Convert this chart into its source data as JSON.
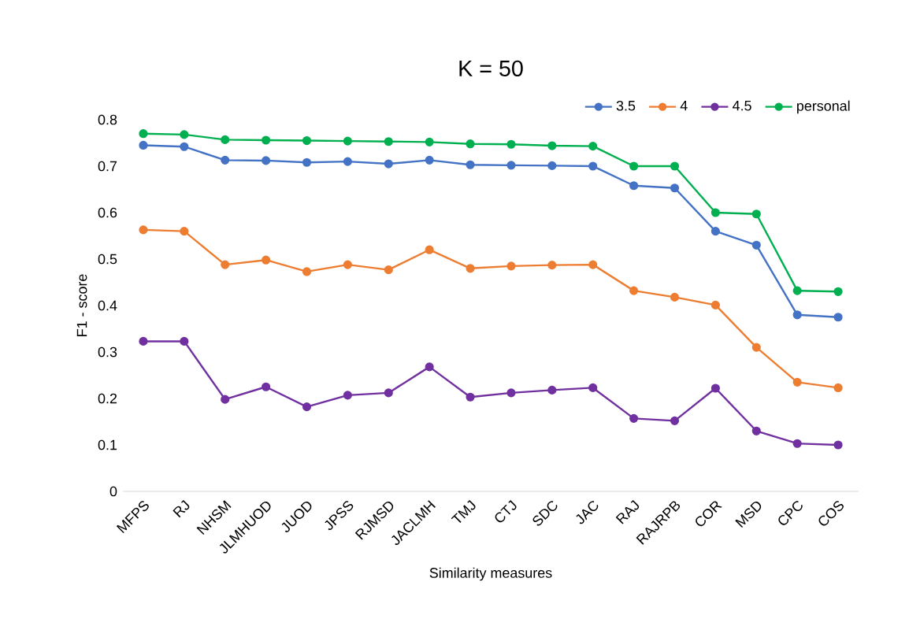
{
  "chart_data": {
    "type": "line",
    "title": "K = 50",
    "xlabel": "Similarity measures",
    "ylabel": "F1 - score",
    "categories": [
      "MFPS",
      "RJ",
      "NHSM",
      "JLMHUOD",
      "JUOD",
      "JPSS",
      "RJMSD",
      "JACLMH",
      "TMJ",
      "CTJ",
      "SDC",
      "JAC",
      "RAJ",
      "RAJRPB",
      "COR",
      "MSD",
      "CPC",
      "COS"
    ],
    "series": [
      {
        "name": "3.5",
        "color": "#4472c4",
        "values": [
          0.745,
          0.742,
          0.713,
          0.712,
          0.708,
          0.71,
          0.705,
          0.713,
          0.703,
          0.702,
          0.701,
          0.7,
          0.658,
          0.653,
          0.56,
          0.53,
          0.38,
          0.375
        ]
      },
      {
        "name": "4",
        "color": "#ed7d31",
        "values": [
          0.563,
          0.56,
          0.488,
          0.498,
          0.473,
          0.488,
          0.477,
          0.52,
          0.48,
          0.485,
          0.487,
          0.488,
          0.432,
          0.418,
          0.401,
          0.31,
          0.235,
          0.223
        ]
      },
      {
        "name": "4.5",
        "color": "#7030a0",
        "values": [
          0.323,
          0.323,
          0.198,
          0.225,
          0.182,
          0.207,
          0.212,
          0.268,
          0.203,
          0.212,
          0.218,
          0.223,
          0.157,
          0.152,
          0.222,
          0.13,
          0.103,
          0.1
        ]
      },
      {
        "name": "personal",
        "color": "#00b050",
        "values": [
          0.77,
          0.768,
          0.757,
          0.756,
          0.755,
          0.754,
          0.753,
          0.752,
          0.748,
          0.747,
          0.744,
          0.743,
          0.7,
          0.7,
          0.6,
          0.597,
          0.432,
          0.43
        ]
      }
    ],
    "ylim": [
      0,
      0.8
    ],
    "yticks": [
      0,
      0.1,
      0.2,
      0.3,
      0.4,
      0.5,
      0.6,
      0.7,
      0.8
    ],
    "grid": false,
    "legend": "top right",
    "marker": "circle",
    "line_style": "solid"
  }
}
